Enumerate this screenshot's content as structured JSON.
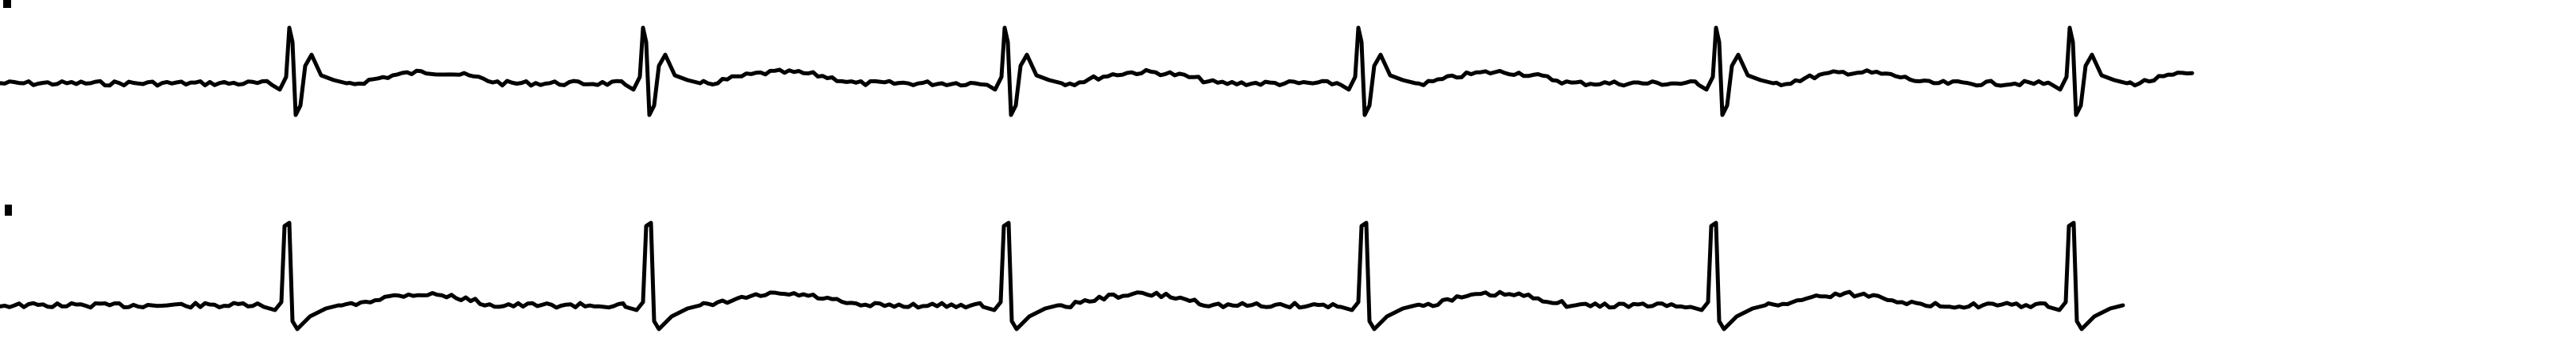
{
  "colors": {
    "background": "#ffffff",
    "trace": "#000000"
  },
  "chart_data": {
    "type": "line",
    "title": "",
    "xlabel": "",
    "ylabel": "",
    "grid": false,
    "legend": "none",
    "series": [
      {
        "beats_x_px_fraction": null
      }
    ]
  }
}
